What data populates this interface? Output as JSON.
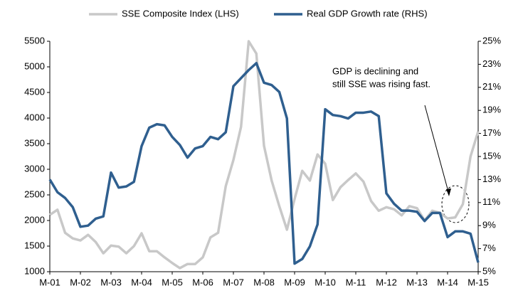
{
  "chart_data": {
    "type": "line",
    "categories": [
      "M-01",
      null,
      null,
      null,
      "M-02",
      null,
      null,
      null,
      "M-03",
      null,
      null,
      null,
      "M-04",
      null,
      null,
      null,
      "M-05",
      null,
      null,
      null,
      "M-06",
      null,
      null,
      null,
      "M-07",
      null,
      null,
      null,
      "M-08",
      null,
      null,
      null,
      "M-09",
      null,
      null,
      null,
      "M-10",
      null,
      null,
      null,
      "M-11",
      null,
      null,
      null,
      "M-12",
      null,
      null,
      null,
      "M-13",
      null,
      null,
      null,
      "M-14",
      null,
      null,
      null,
      "M-15"
    ],
    "series": [
      {
        "name": "SSE Composite Index (LHS)",
        "color": "#c8c8c8",
        "axis": "y",
        "values": [
          2110,
          2210,
          1760,
          1650,
          1610,
          1720,
          1580,
          1360,
          1510,
          1490,
          1360,
          1500,
          1750,
          1400,
          1400,
          1280,
          1170,
          1070,
          1150,
          1150,
          1280,
          1670,
          1760,
          2670,
          3180,
          3830,
          5500,
          5260,
          3460,
          2780,
          2280,
          1820,
          2420,
          2970,
          2780,
          3290,
          3110,
          2400,
          2650,
          2790,
          2920,
          2760,
          2380,
          2190,
          2260,
          2220,
          2100,
          2280,
          2240,
          2000,
          2190,
          2150,
          2040,
          2060,
          2320,
          3250,
          3740
        ]
      },
      {
        "name": "Real GDP Growth rate (RHS)",
        "color": "#2f5f8f",
        "axis": "y2",
        "values": [
          13.0,
          11.9,
          11.4,
          10.6,
          8.9,
          9.0,
          9.6,
          9.8,
          13.6,
          12.3,
          12.4,
          12.8,
          15.9,
          17.5,
          17.8,
          17.7,
          16.7,
          16.0,
          14.9,
          15.7,
          15.9,
          16.7,
          16.5,
          17.1,
          21.1,
          21.8,
          22.5,
          23.1,
          21.4,
          21.2,
          20.6,
          18.3,
          5.7,
          6.1,
          7.2,
          9.1,
          19.1,
          18.6,
          18.5,
          18.3,
          18.8,
          18.8,
          18.9,
          18.5,
          11.8,
          10.9,
          10.3,
          10.3,
          10.2,
          9.4,
          10.1,
          10.1,
          8.0,
          8.5,
          8.5,
          8.3,
          5.8
        ]
      }
    ],
    "ylim": [
      1000,
      5500
    ],
    "yticks": [
      1000,
      1500,
      2000,
      2500,
      3000,
      3500,
      4000,
      4500,
      5000,
      5500
    ],
    "y2lim": [
      5,
      25
    ],
    "y2ticks": [
      {
        "value": 5,
        "label": "5%"
      },
      {
        "value": 7,
        "label": "7%"
      },
      {
        "value": 9,
        "label": "9%"
      },
      {
        "value": 11,
        "label": "11%"
      },
      {
        "value": 13,
        "label": "13%"
      },
      {
        "value": 15,
        "label": "15%"
      },
      {
        "value": 17,
        "label": "17%"
      },
      {
        "value": 19,
        "label": "19%"
      },
      {
        "value": 21,
        "label": "21%"
      },
      {
        "value": 23,
        "label": "23%"
      },
      {
        "value": 25,
        "label": "25%"
      }
    ],
    "legend": "top",
    "annotation": [
      "GDP is declining and",
      "still SSE was rising fast."
    ]
  }
}
